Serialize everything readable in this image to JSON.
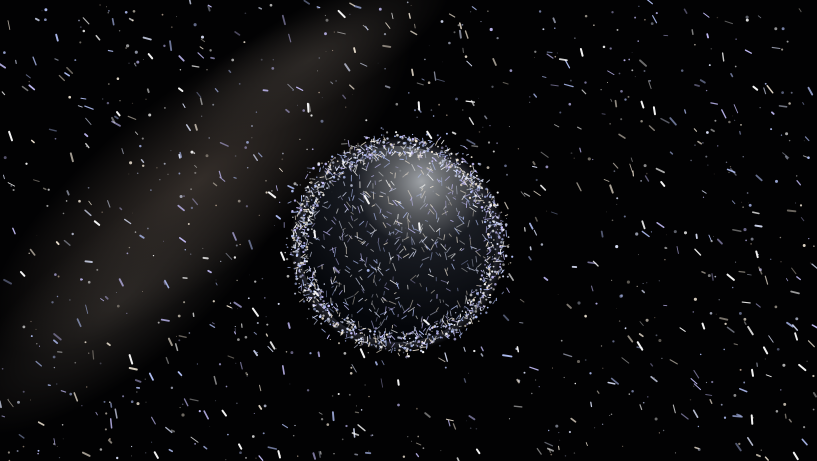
{
  "scene": {
    "subject": "earth-surrounded-by-orbital-debris",
    "background_color": "#020203",
    "milky_way_tint": "#5b5048",
    "planet_night_color": "#04060a",
    "planet_lit_color": "#8a8f96",
    "debris_colors": [
      "#ffffff",
      "#dfe6ff",
      "#c9c2ff",
      "#f2e7d6",
      "#b8c7ff"
    ],
    "star_colors": [
      "#ffffff",
      "#cfd8ff",
      "#ffe2c8"
    ]
  }
}
